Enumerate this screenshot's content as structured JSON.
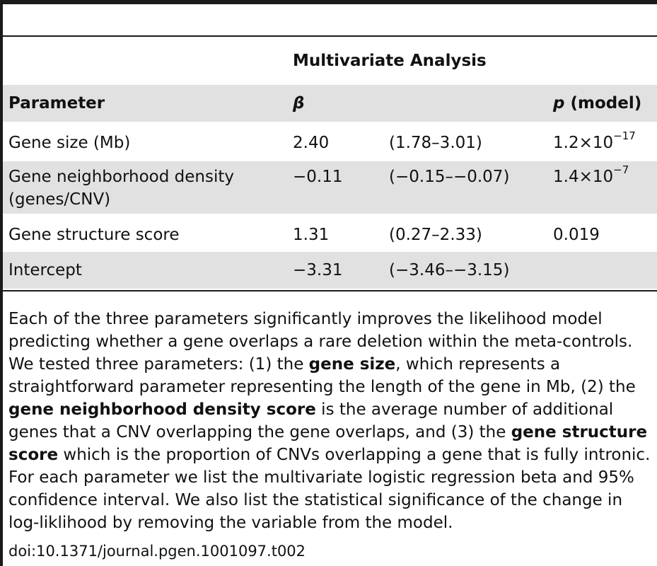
{
  "table": {
    "group_header": "Multivariate Analysis",
    "columns": {
      "parameter": "Parameter",
      "beta": "β",
      "p_label_italic": "p",
      "p_label_rest": " (model)"
    },
    "rows": [
      {
        "parameter_line1": "Gene size (Mb)",
        "parameter_line2": "",
        "beta": "2.40",
        "ci": "(1.78–3.01)",
        "p_base": "1.2×10",
        "p_exp": "−17"
      },
      {
        "parameter_line1": "Gene neighborhood density",
        "parameter_line2": "(genes/CNV)",
        "beta": "−0.11",
        "ci": "(−0.15–−0.07)",
        "p_base": "1.4×10",
        "p_exp": "−7"
      },
      {
        "parameter_line1": "Gene structure score",
        "parameter_line2": "",
        "beta": "1.31",
        "ci": "(0.27–2.33)",
        "p_base": "0.019",
        "p_exp": ""
      },
      {
        "parameter_line1": "Intercept",
        "parameter_line2": "",
        "beta": "−3.31",
        "ci": "(−3.46–−3.15)",
        "p_base": "",
        "p_exp": ""
      }
    ]
  },
  "caption": {
    "s1": "Each of the three parameters significantly improves the likelihood model predicting whether a gene overlaps a rare deletion within the meta-controls. We tested three parameters: (1) the ",
    "b1": "gene size",
    "s2": ", which represents a straightforward parameter representing the length of the gene in Mb, (2) the ",
    "b2": "gene neighborhood density score",
    "s3": " is the average number of additional genes that a CNV overlapping the gene overlaps, and (3) the ",
    "b3": "gene structure score",
    "s4": " which is the proportion of CNVs overlapping a gene that is fully intronic. For each parameter we list the multivariate logistic regression beta and 95% confidence interval. We also list the statistical significance of the change in log-liklihood by removing the variable from the model."
  },
  "doi": "doi:10.1371/journal.pgen.1001097.t002"
}
